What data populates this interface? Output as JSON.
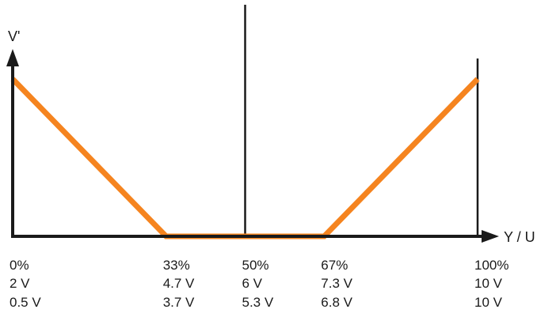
{
  "chart_data": {
    "type": "line",
    "ylabel": "V'",
    "xlabel": "Y / U",
    "xlim": [
      0,
      100
    ],
    "ylim": [
      0,
      1
    ],
    "ticks": [
      {
        "x": 0,
        "rows": [
          "0%",
          "2 V",
          "0.5 V"
        ]
      },
      {
        "x": 33,
        "rows": [
          "33%",
          "4.7 V",
          "3.7 V"
        ]
      },
      {
        "x": 50,
        "rows": [
          "50%",
          "6 V",
          "5.3 V"
        ]
      },
      {
        "x": 67,
        "rows": [
          "67%",
          "7.3 V",
          "6.8 V"
        ]
      },
      {
        "x": 100,
        "rows": [
          "100%",
          "10 V",
          "10 V"
        ]
      }
    ],
    "series": [
      {
        "color": "#f5841f",
        "points": [
          [
            0,
            1
          ],
          [
            33,
            0
          ],
          [
            67,
            0
          ],
          [
            100,
            1
          ]
        ]
      }
    ],
    "vertical_lines": [
      50,
      100
    ]
  }
}
